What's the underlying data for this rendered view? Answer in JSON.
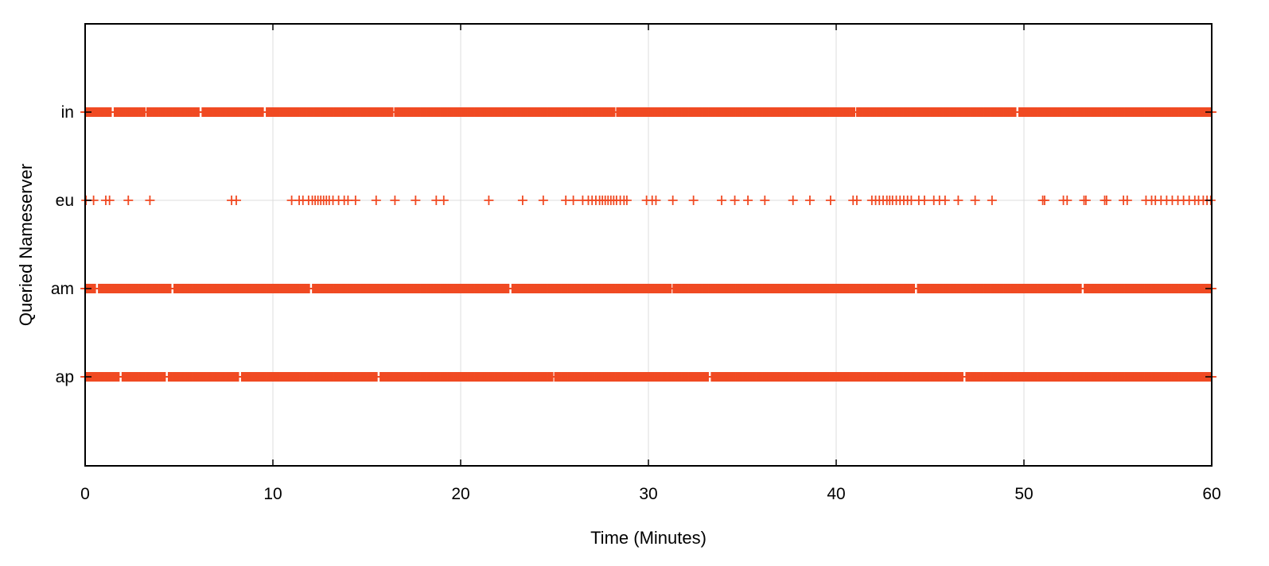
{
  "chart_data": {
    "type": "scatter",
    "marker": "plus",
    "marker_color": "#f04a23",
    "xlabel": "Time (Minutes)",
    "ylabel": "Queried Nameserver",
    "xlim": [
      0,
      60
    ],
    "x_ticks": [
      0,
      10,
      20,
      30,
      40,
      50,
      60
    ],
    "y_categories": [
      "in",
      "eu",
      "am",
      "ap"
    ],
    "grid": true,
    "legend": "none",
    "series": [
      {
        "category": "in",
        "pattern": "dense",
        "gaps": [
          [
            1.4,
            1.55
          ],
          [
            3.2,
            3.3
          ],
          [
            6.1,
            6.2
          ],
          [
            9.5,
            9.6
          ],
          [
            16.4,
            16.5
          ],
          [
            28.2,
            28.3
          ],
          [
            41.0,
            41.1
          ],
          [
            49.6,
            49.7
          ]
        ]
      },
      {
        "category": "eu",
        "pattern": "sparse",
        "x": [
          0.05,
          0.45,
          1.1,
          1.3,
          2.3,
          3.45,
          7.8,
          8.05,
          11.0,
          11.4,
          11.6,
          11.9,
          12.1,
          12.25,
          12.4,
          12.55,
          12.7,
          12.85,
          13.0,
          13.2,
          13.5,
          13.8,
          14.0,
          14.4,
          15.5,
          16.5,
          17.6,
          18.7,
          19.1,
          21.5,
          23.3,
          24.4,
          25.6,
          26.0,
          26.5,
          26.8,
          27.0,
          27.2,
          27.4,
          27.55,
          27.7,
          27.85,
          28.0,
          28.15,
          28.3,
          28.5,
          28.7,
          28.85,
          29.9,
          30.2,
          30.4,
          31.3,
          32.4,
          33.9,
          34.6,
          35.3,
          36.2,
          37.7,
          38.6,
          39.7,
          40.9,
          41.1,
          41.9,
          42.1,
          42.3,
          42.5,
          42.7,
          42.85,
          43.0,
          43.2,
          43.4,
          43.6,
          43.8,
          44.0,
          44.4,
          44.7,
          45.2,
          45.5,
          45.8,
          46.5,
          47.4,
          48.3,
          51.0,
          51.1,
          52.1,
          52.3,
          53.2,
          53.3,
          54.3,
          54.4,
          55.3,
          55.5,
          56.5,
          56.8,
          57.0,
          57.3,
          57.6,
          57.9,
          58.2,
          58.5,
          58.8,
          59.1,
          59.3,
          59.55,
          59.75,
          59.95
        ]
      },
      {
        "category": "am",
        "pattern": "dense",
        "gaps": [
          [
            0.6,
            0.7
          ],
          [
            4.6,
            4.7
          ],
          [
            12.0,
            12.1
          ],
          [
            22.6,
            22.7
          ],
          [
            31.2,
            31.3
          ],
          [
            44.2,
            44.3
          ],
          [
            53.1,
            53.2
          ]
        ]
      },
      {
        "category": "ap",
        "pattern": "dense",
        "gaps": [
          [
            1.85,
            1.95
          ],
          [
            4.3,
            4.4
          ],
          [
            8.2,
            8.3
          ],
          [
            15.6,
            15.7
          ],
          [
            24.9,
            25.0
          ],
          [
            33.2,
            33.3
          ],
          [
            46.8,
            46.9
          ]
        ]
      }
    ]
  }
}
